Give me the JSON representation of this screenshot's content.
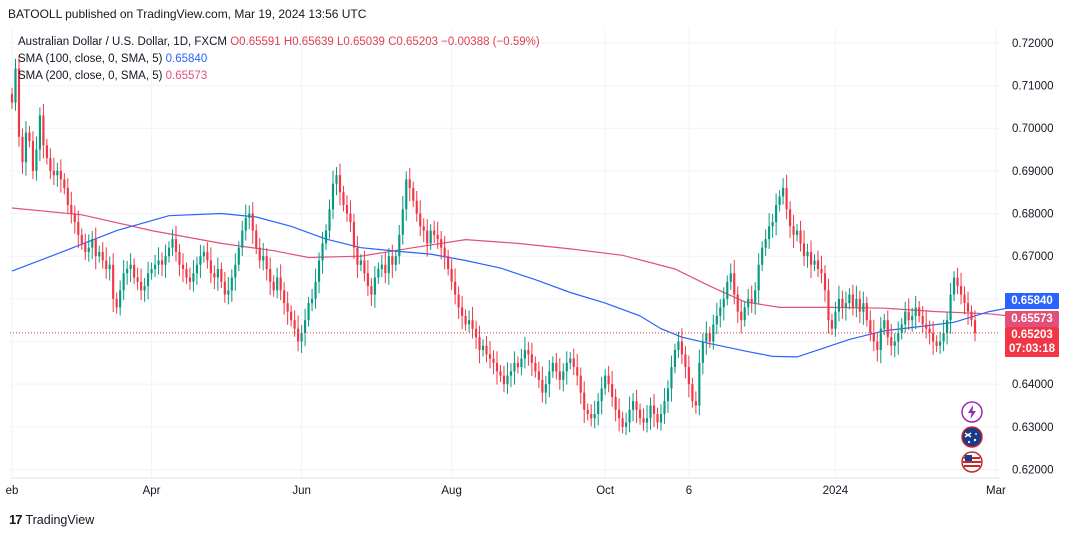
{
  "publisher": "BATOOLL published on TradingView.com, Mar 19, 2024 13:56 UTC",
  "footer": {
    "brand": "TradingView",
    "logo_mark": "17"
  },
  "legend": {
    "symbol": "Australian Dollar / U.S. Dollar, 1D, FXCM",
    "ohlc": "O0.65591 H0.65639 L0.65039 C0.65203 −0.00388 (−0.59%)",
    "sma100_label": "SMA (100, close, 0, SMA, 5)",
    "sma100_value": "0.65840",
    "sma200_label": "SMA (200, close, 0, SMA, 5)",
    "sma200_value": "0.65573"
  },
  "badges": {
    "sma100": "0.65840",
    "sma200": "0.65573",
    "last": "0.65203",
    "countdown": "07:03:18"
  },
  "colors": {
    "up": "#089981",
    "down": "#f23645",
    "sma100": "#2962ff",
    "sma200": "#e0507a",
    "grid": "#f0f3fa"
  },
  "events": [
    {
      "name": "flash-event-icon",
      "color": "#9c27b0"
    },
    {
      "name": "australia-flag-icon",
      "color": "#1a3a8a"
    },
    {
      "name": "us-flag-icon",
      "color": "#c62828"
    }
  ],
  "chart_data": {
    "type": "candlestick",
    "title": "Australian Dollar / U.S. Dollar, 1D, FXCM",
    "ylim": [
      0.618,
      0.7235
    ],
    "y_ticks": [
      "0.72000",
      "0.71000",
      "0.70000",
      "0.69000",
      "0.68000",
      "0.67000",
      "0.66000",
      "0.65000",
      "0.64000",
      "0.63000",
      "0.62000"
    ],
    "x_ticks": [
      {
        "label": "eb",
        "index": 0
      },
      {
        "label": "Apr",
        "index": 40
      },
      {
        "label": "Jun",
        "index": 83
      },
      {
        "label": "Aug",
        "index": 126
      },
      {
        "label": "Oct",
        "index": 170
      },
      {
        "label": "6",
        "index": 194
      },
      {
        "label": "2024",
        "index": 236
      },
      {
        "label": "Mar",
        "index": 282
      }
    ],
    "closes": [
      0.706,
      0.714,
      0.698,
      0.692,
      0.699,
      0.697,
      0.69,
      0.695,
      0.703,
      0.696,
      0.693,
      0.69,
      0.689,
      0.69,
      0.688,
      0.686,
      0.682,
      0.68,
      0.678,
      0.675,
      0.673,
      0.671,
      0.672,
      0.674,
      0.67,
      0.671,
      0.669,
      0.667,
      0.668,
      0.66,
      0.658,
      0.662,
      0.666,
      0.667,
      0.668,
      0.665,
      0.664,
      0.662,
      0.663,
      0.666,
      0.667,
      0.668,
      0.669,
      0.668,
      0.67,
      0.672,
      0.674,
      0.671,
      0.668,
      0.667,
      0.665,
      0.664,
      0.666,
      0.668,
      0.67,
      0.671,
      0.669,
      0.666,
      0.665,
      0.667,
      0.664,
      0.661,
      0.662,
      0.665,
      0.668,
      0.672,
      0.676,
      0.679,
      0.68,
      0.676,
      0.672,
      0.669,
      0.67,
      0.667,
      0.664,
      0.662,
      0.665,
      0.662,
      0.659,
      0.657,
      0.655,
      0.653,
      0.65,
      0.652,
      0.655,
      0.659,
      0.66,
      0.664,
      0.669,
      0.673,
      0.676,
      0.681,
      0.687,
      0.689,
      0.685,
      0.682,
      0.68,
      0.678,
      0.672,
      0.668,
      0.669,
      0.666,
      0.663,
      0.661,
      0.665,
      0.667,
      0.668,
      0.666,
      0.67,
      0.668,
      0.67,
      0.675,
      0.681,
      0.688,
      0.686,
      0.683,
      0.68,
      0.677,
      0.676,
      0.673,
      0.676,
      0.675,
      0.674,
      0.672,
      0.67,
      0.667,
      0.664,
      0.661,
      0.658,
      0.656,
      0.654,
      0.655,
      0.653,
      0.651,
      0.648,
      0.649,
      0.647,
      0.646,
      0.645,
      0.643,
      0.642,
      0.64,
      0.642,
      0.643,
      0.645,
      0.644,
      0.646,
      0.648,
      0.647,
      0.645,
      0.643,
      0.641,
      0.638,
      0.64,
      0.643,
      0.645,
      0.643,
      0.641,
      0.643,
      0.645,
      0.646,
      0.644,
      0.642,
      0.638,
      0.634,
      0.633,
      0.632,
      0.633,
      0.636,
      0.639,
      0.642,
      0.64,
      0.637,
      0.634,
      0.632,
      0.63,
      0.631,
      0.634,
      0.636,
      0.634,
      0.632,
      0.631,
      0.632,
      0.635,
      0.633,
      0.631,
      0.633,
      0.636,
      0.639,
      0.644,
      0.648,
      0.65,
      0.647,
      0.644,
      0.64,
      0.636,
      0.635,
      0.645,
      0.65,
      0.652,
      0.65,
      0.654,
      0.656,
      0.658,
      0.66,
      0.664,
      0.666,
      0.661,
      0.657,
      0.655,
      0.658,
      0.66,
      0.659,
      0.662,
      0.668,
      0.672,
      0.674,
      0.677,
      0.678,
      0.682,
      0.684,
      0.686,
      0.681,
      0.677,
      0.675,
      0.676,
      0.673,
      0.67,
      0.671,
      0.668,
      0.669,
      0.667,
      0.666,
      0.662,
      0.655,
      0.653,
      0.657,
      0.66,
      0.658,
      0.659,
      0.661,
      0.658,
      0.66,
      0.657,
      0.659,
      0.655,
      0.652,
      0.65,
      0.648,
      0.653,
      0.655,
      0.651,
      0.649,
      0.65,
      0.652,
      0.654,
      0.657,
      0.655,
      0.656,
      0.658,
      0.656,
      0.654,
      0.653,
      0.652,
      0.65,
      0.649,
      0.65,
      0.652,
      0.655,
      0.661,
      0.665,
      0.663,
      0.661,
      0.659,
      0.657,
      0.655,
      0.652
    ],
    "sma100": [
      [
        0,
        0.6665
      ],
      [
        15,
        0.6712
      ],
      [
        30,
        0.676
      ],
      [
        45,
        0.6795
      ],
      [
        60,
        0.68
      ],
      [
        70,
        0.6792
      ],
      [
        80,
        0.677
      ],
      [
        90,
        0.674
      ],
      [
        100,
        0.672
      ],
      [
        110,
        0.6712
      ],
      [
        120,
        0.6705
      ],
      [
        130,
        0.669
      ],
      [
        140,
        0.6672
      ],
      [
        150,
        0.6645
      ],
      [
        160,
        0.6615
      ],
      [
        170,
        0.659
      ],
      [
        180,
        0.656
      ],
      [
        186,
        0.653
      ],
      [
        192,
        0.651
      ],
      [
        200,
        0.6495
      ],
      [
        210,
        0.6478
      ],
      [
        218,
        0.6465
      ],
      [
        225,
        0.6464
      ],
      [
        232,
        0.6483
      ],
      [
        240,
        0.6505
      ],
      [
        250,
        0.6525
      ],
      [
        260,
        0.6535
      ],
      [
        270,
        0.6545
      ],
      [
        280,
        0.657
      ],
      [
        289,
        0.6584
      ]
    ],
    "sma200": [
      [
        0,
        0.6813
      ],
      [
        20,
        0.6797
      ],
      [
        40,
        0.676
      ],
      [
        60,
        0.673
      ],
      [
        75,
        0.6713
      ],
      [
        85,
        0.6697
      ],
      [
        100,
        0.67
      ],
      [
        115,
        0.672
      ],
      [
        130,
        0.6739
      ],
      [
        145,
        0.673
      ],
      [
        160,
        0.6717
      ],
      [
        175,
        0.6702
      ],
      [
        190,
        0.667
      ],
      [
        200,
        0.663
      ],
      [
        210,
        0.6593
      ],
      [
        220,
        0.658
      ],
      [
        235,
        0.658
      ],
      [
        250,
        0.6578
      ],
      [
        265,
        0.657
      ],
      [
        280,
        0.6565
      ],
      [
        289,
        0.65573
      ]
    ],
    "last_price": 0.65203,
    "sma100_last": 0.6584,
    "sma200_last": 0.65573
  }
}
